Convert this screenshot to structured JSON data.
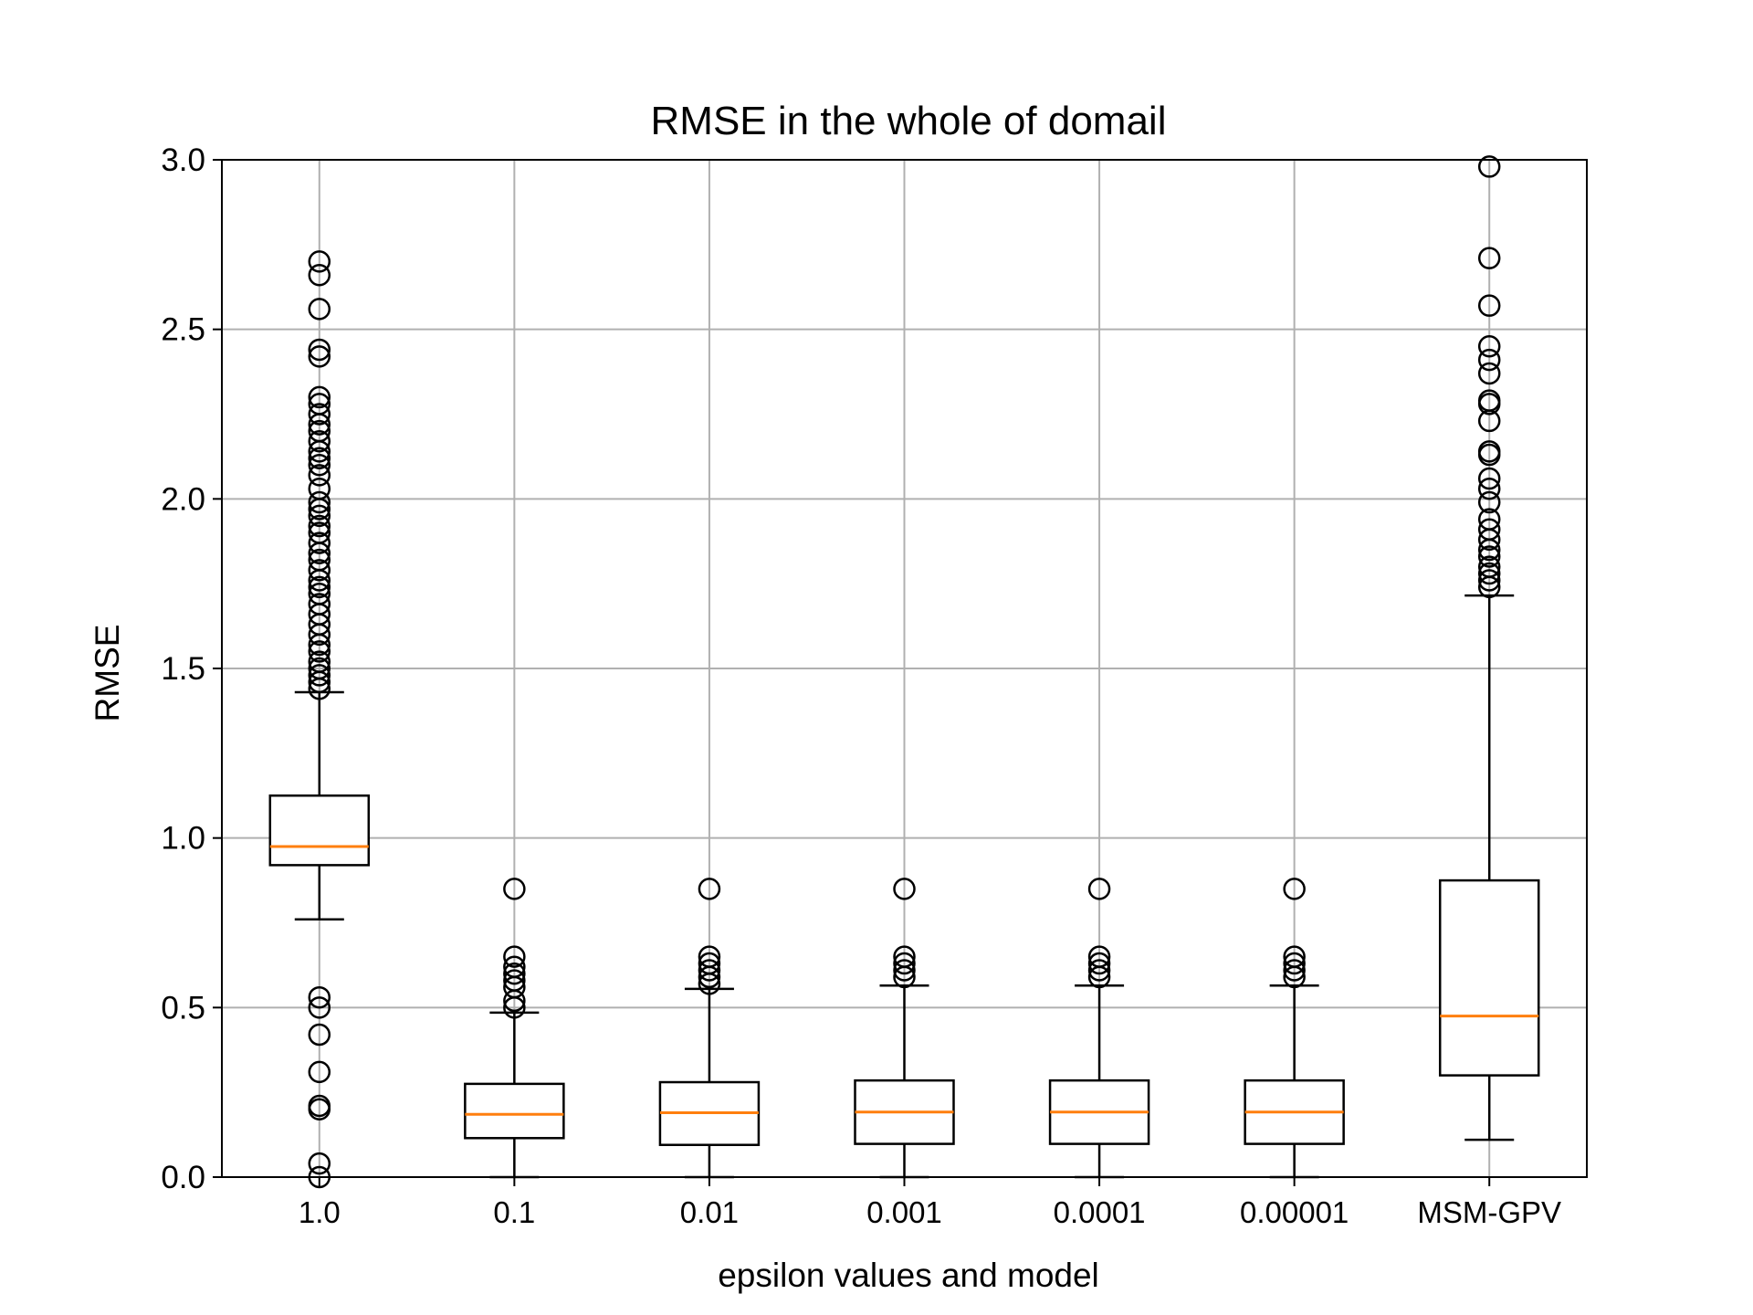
{
  "chart_data": {
    "type": "boxplot",
    "title": "RMSE in the whole of domail",
    "xlabel": "epsilon values and model",
    "ylabel": "RMSE",
    "ylim": [
      0.0,
      3.0
    ],
    "yticks": [
      "0.0",
      "0.5",
      "1.0",
      "1.5",
      "2.0",
      "2.5",
      "3.0"
    ],
    "grid": true,
    "colors": {
      "box": "#000000",
      "median": "#ff7f0e",
      "grid": "#b0b0b0"
    },
    "categories": [
      "1.0",
      "0.1",
      "0.01",
      "0.001",
      "0.0001",
      "0.00001",
      "MSM-GPV"
    ],
    "boxes": [
      {
        "label": "1.0",
        "whisker_low": 0.76,
        "q1": 0.92,
        "median": 0.975,
        "q3": 1.125,
        "whisker_high": 1.43,
        "outliers": [
          2.7,
          2.66,
          2.56,
          2.44,
          2.42,
          2.3,
          2.28,
          2.25,
          2.22,
          2.2,
          2.17,
          2.14,
          2.12,
          2.1,
          2.07,
          2.03,
          1.99,
          1.97,
          1.95,
          1.92,
          1.9,
          1.87,
          1.84,
          1.82,
          1.79,
          1.76,
          1.74,
          1.72,
          1.69,
          1.66,
          1.63,
          1.6,
          1.57,
          1.55,
          1.52,
          1.5,
          1.48,
          1.46,
          1.44,
          0.53,
          0.5,
          0.42,
          0.31,
          0.21,
          0.2,
          0.04,
          0.0
        ]
      },
      {
        "label": "0.1",
        "whisker_low": 0.0,
        "q1": 0.115,
        "median": 0.185,
        "q3": 0.275,
        "whisker_high": 0.485,
        "outliers": [
          0.85,
          0.65,
          0.62,
          0.6,
          0.58,
          0.56,
          0.52,
          0.5
        ]
      },
      {
        "label": "0.01",
        "whisker_low": 0.0,
        "q1": 0.095,
        "median": 0.19,
        "q3": 0.28,
        "whisker_high": 0.555,
        "outliers": [
          0.85,
          0.65,
          0.63,
          0.61,
          0.59,
          0.57
        ]
      },
      {
        "label": "0.001",
        "whisker_low": 0.0,
        "q1": 0.098,
        "median": 0.192,
        "q3": 0.285,
        "whisker_high": 0.565,
        "outliers": [
          0.85,
          0.65,
          0.63,
          0.61,
          0.59
        ]
      },
      {
        "label": "0.0001",
        "whisker_low": 0.0,
        "q1": 0.098,
        "median": 0.192,
        "q3": 0.285,
        "whisker_high": 0.565,
        "outliers": [
          0.85,
          0.65,
          0.63,
          0.61,
          0.59
        ]
      },
      {
        "label": "0.00001",
        "whisker_low": 0.0,
        "q1": 0.098,
        "median": 0.192,
        "q3": 0.285,
        "whisker_high": 0.565,
        "outliers": [
          0.85,
          0.65,
          0.63,
          0.61,
          0.59
        ]
      },
      {
        "label": "MSM-GPV",
        "whisker_low": 0.11,
        "q1": 0.3,
        "median": 0.475,
        "q3": 0.875,
        "whisker_high": 1.715,
        "outliers": [
          2.98,
          2.71,
          2.57,
          2.45,
          2.41,
          2.37,
          2.29,
          2.28,
          2.23,
          2.14,
          2.13,
          2.06,
          2.03,
          1.99,
          1.94,
          1.91,
          1.88,
          1.85,
          1.83,
          1.8,
          1.78,
          1.76,
          1.74
        ]
      }
    ]
  }
}
